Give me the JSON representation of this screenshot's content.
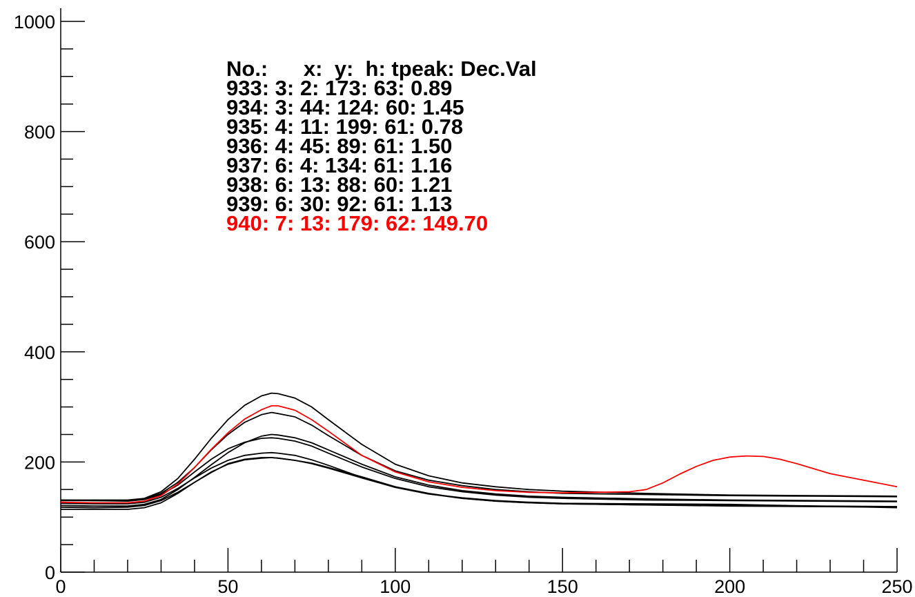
{
  "chart_data": {
    "type": "line",
    "title": "",
    "xlabel": "",
    "ylabel": "",
    "xlim": [
      0,
      250
    ],
    "ylim": [
      0,
      1000
    ],
    "x_ticks": [
      "0",
      "50",
      "100",
      "150",
      "200",
      "250"
    ],
    "y_ticks": [
      "0",
      "200",
      "400",
      "600",
      "800",
      "1000"
    ],
    "grid": false,
    "legend_placement": "top-center",
    "legend_header": "No.:      x:  y:  h: tpeak: Dec.Val",
    "series": [
      {
        "legend": "933: 3: 2: 173: 63: 0.89",
        "color": "#000000",
        "points": [
          [
            0,
            118
          ],
          [
            10,
            117
          ],
          [
            20,
            118
          ],
          [
            25,
            121
          ],
          [
            30,
            130
          ],
          [
            35,
            145
          ],
          [
            40,
            163
          ],
          [
            45,
            181
          ],
          [
            50,
            197
          ],
          [
            55,
            205
          ],
          [
            60,
            208
          ],
          [
            63,
            208
          ],
          [
            65,
            207
          ],
          [
            70,
            203
          ],
          [
            75,
            198
          ],
          [
            80,
            190
          ],
          [
            90,
            173
          ],
          [
            100,
            155
          ],
          [
            110,
            143
          ],
          [
            120,
            134
          ],
          [
            130,
            129
          ],
          [
            140,
            126
          ],
          [
            150,
            124
          ],
          [
            175,
            122
          ],
          [
            200,
            120
          ],
          [
            225,
            119
          ],
          [
            250,
            118
          ]
        ]
      },
      {
        "legend": "934: 3: 44: 124: 60: 1.45",
        "color": "#000000",
        "points": [
          [
            0,
            131
          ],
          [
            10,
            130
          ],
          [
            20,
            130
          ],
          [
            25,
            133
          ],
          [
            30,
            143
          ],
          [
            35,
            163
          ],
          [
            40,
            190
          ],
          [
            45,
            222
          ],
          [
            50,
            250
          ],
          [
            55,
            272
          ],
          [
            60,
            286
          ],
          [
            63,
            290
          ],
          [
            65,
            288
          ],
          [
            70,
            282
          ],
          [
            75,
            267
          ],
          [
            80,
            248
          ],
          [
            90,
            212
          ],
          [
            100,
            184
          ],
          [
            110,
            167
          ],
          [
            120,
            157
          ],
          [
            130,
            150
          ],
          [
            140,
            146
          ],
          [
            150,
            143
          ],
          [
            175,
            141
          ],
          [
            200,
            139
          ],
          [
            225,
            138
          ],
          [
            250,
            137
          ]
        ]
      },
      {
        "legend": "935: 4: 11: 199: 61: 0.78",
        "color": "#000000",
        "points": [
          [
            0,
            131
          ],
          [
            10,
            131
          ],
          [
            20,
            131
          ],
          [
            25,
            134
          ],
          [
            30,
            146
          ],
          [
            35,
            170
          ],
          [
            40,
            205
          ],
          [
            45,
            243
          ],
          [
            50,
            277
          ],
          [
            55,
            303
          ],
          [
            60,
            320
          ],
          [
            63,
            325
          ],
          [
            65,
            324
          ],
          [
            70,
            316
          ],
          [
            75,
            300
          ],
          [
            80,
            277
          ],
          [
            90,
            232
          ],
          [
            100,
            196
          ],
          [
            110,
            175
          ],
          [
            120,
            162
          ],
          [
            130,
            155
          ],
          [
            140,
            150
          ],
          [
            150,
            147
          ],
          [
            175,
            143
          ],
          [
            200,
            140
          ],
          [
            225,
            139
          ],
          [
            250,
            138
          ]
        ]
      },
      {
        "legend": "936: 4: 45: 89: 61: 1.50",
        "color": "#000000",
        "points": [
          [
            0,
            121
          ],
          [
            10,
            120
          ],
          [
            20,
            120
          ],
          [
            25,
            123
          ],
          [
            30,
            132
          ],
          [
            35,
            150
          ],
          [
            40,
            172
          ],
          [
            45,
            195
          ],
          [
            50,
            217
          ],
          [
            55,
            235
          ],
          [
            60,
            247
          ],
          [
            63,
            250
          ],
          [
            65,
            249
          ],
          [
            70,
            244
          ],
          [
            75,
            235
          ],
          [
            80,
            222
          ],
          [
            90,
            196
          ],
          [
            100,
            173
          ],
          [
            110,
            158
          ],
          [
            120,
            148
          ],
          [
            130,
            142
          ],
          [
            140,
            138
          ],
          [
            150,
            136
          ],
          [
            175,
            133
          ],
          [
            200,
            131
          ],
          [
            225,
            130
          ],
          [
            250,
            129
          ]
        ]
      },
      {
        "legend": "937: 6: 4: 134: 61: 1.16",
        "color": "#000000",
        "points": [
          [
            0,
            130
          ],
          [
            10,
            130
          ],
          [
            20,
            129
          ],
          [
            25,
            132
          ],
          [
            30,
            141
          ],
          [
            35,
            158
          ],
          [
            40,
            182
          ],
          [
            45,
            205
          ],
          [
            50,
            224
          ],
          [
            55,
            236
          ],
          [
            60,
            243
          ],
          [
            63,
            244
          ],
          [
            65,
            243
          ],
          [
            70,
            238
          ],
          [
            75,
            229
          ],
          [
            80,
            216
          ],
          [
            90,
            191
          ],
          [
            100,
            170
          ],
          [
            110,
            155
          ],
          [
            120,
            146
          ],
          [
            130,
            140
          ],
          [
            140,
            136
          ],
          [
            150,
            134
          ],
          [
            175,
            131
          ],
          [
            200,
            130
          ],
          [
            225,
            129
          ],
          [
            250,
            128
          ]
        ]
      },
      {
        "legend": "938: 6: 13: 88: 60: 1.21",
        "color": "#000000",
        "points": [
          [
            0,
            125
          ],
          [
            10,
            124
          ],
          [
            20,
            124
          ],
          [
            25,
            127
          ],
          [
            30,
            136
          ],
          [
            35,
            152
          ],
          [
            40,
            171
          ],
          [
            45,
            189
          ],
          [
            50,
            203
          ],
          [
            55,
            212
          ],
          [
            60,
            216
          ],
          [
            63,
            217
          ],
          [
            65,
            216
          ],
          [
            70,
            212
          ],
          [
            75,
            204
          ],
          [
            80,
            194
          ],
          [
            90,
            172
          ],
          [
            100,
            154
          ],
          [
            110,
            142
          ],
          [
            120,
            134
          ],
          [
            130,
            129
          ],
          [
            140,
            126
          ],
          [
            150,
            124
          ],
          [
            175,
            122
          ],
          [
            200,
            121
          ],
          [
            225,
            120
          ],
          [
            250,
            119
          ]
        ]
      },
      {
        "legend": "939: 6: 30: 92: 61: 1.13",
        "color": "#000000",
        "points": [
          [
            0,
            114
          ],
          [
            10,
            114
          ],
          [
            20,
            114
          ],
          [
            25,
            117
          ],
          [
            30,
            126
          ],
          [
            35,
            143
          ],
          [
            40,
            163
          ],
          [
            45,
            182
          ],
          [
            50,
            196
          ],
          [
            55,
            204
          ],
          [
            60,
            207
          ],
          [
            63,
            208
          ],
          [
            65,
            207
          ],
          [
            70,
            203
          ],
          [
            75,
            197
          ],
          [
            80,
            189
          ],
          [
            90,
            171
          ],
          [
            100,
            154
          ],
          [
            110,
            142
          ],
          [
            120,
            135
          ],
          [
            130,
            130
          ],
          [
            140,
            127
          ],
          [
            150,
            125
          ],
          [
            175,
            124
          ],
          [
            200,
            123
          ],
          [
            225,
            120
          ],
          [
            250,
            117
          ]
        ]
      },
      {
        "legend": "940: 7: 13: 179: 62: 149.70",
        "color": "#ff0000",
        "points": [
          [
            0,
            127
          ],
          [
            10,
            126
          ],
          [
            20,
            126
          ],
          [
            25,
            129
          ],
          [
            30,
            139
          ],
          [
            35,
            160
          ],
          [
            40,
            190
          ],
          [
            45,
            223
          ],
          [
            50,
            253
          ],
          [
            55,
            278
          ],
          [
            60,
            295
          ],
          [
            63,
            302
          ],
          [
            65,
            302
          ],
          [
            70,
            294
          ],
          [
            75,
            277
          ],
          [
            80,
            256
          ],
          [
            90,
            212
          ],
          [
            100,
            182
          ],
          [
            110,
            164
          ],
          [
            120,
            154
          ],
          [
            130,
            148
          ],
          [
            140,
            145
          ],
          [
            150,
            144
          ],
          [
            160,
            145
          ],
          [
            170,
            146
          ],
          [
            175,
            150
          ],
          [
            180,
            162
          ],
          [
            185,
            178
          ],
          [
            190,
            192
          ],
          [
            195,
            203
          ],
          [
            200,
            209
          ],
          [
            205,
            211
          ],
          [
            210,
            210
          ],
          [
            215,
            205
          ],
          [
            220,
            197
          ],
          [
            225,
            188
          ],
          [
            230,
            179
          ],
          [
            240,
            167
          ],
          [
            250,
            155
          ]
        ]
      }
    ]
  }
}
